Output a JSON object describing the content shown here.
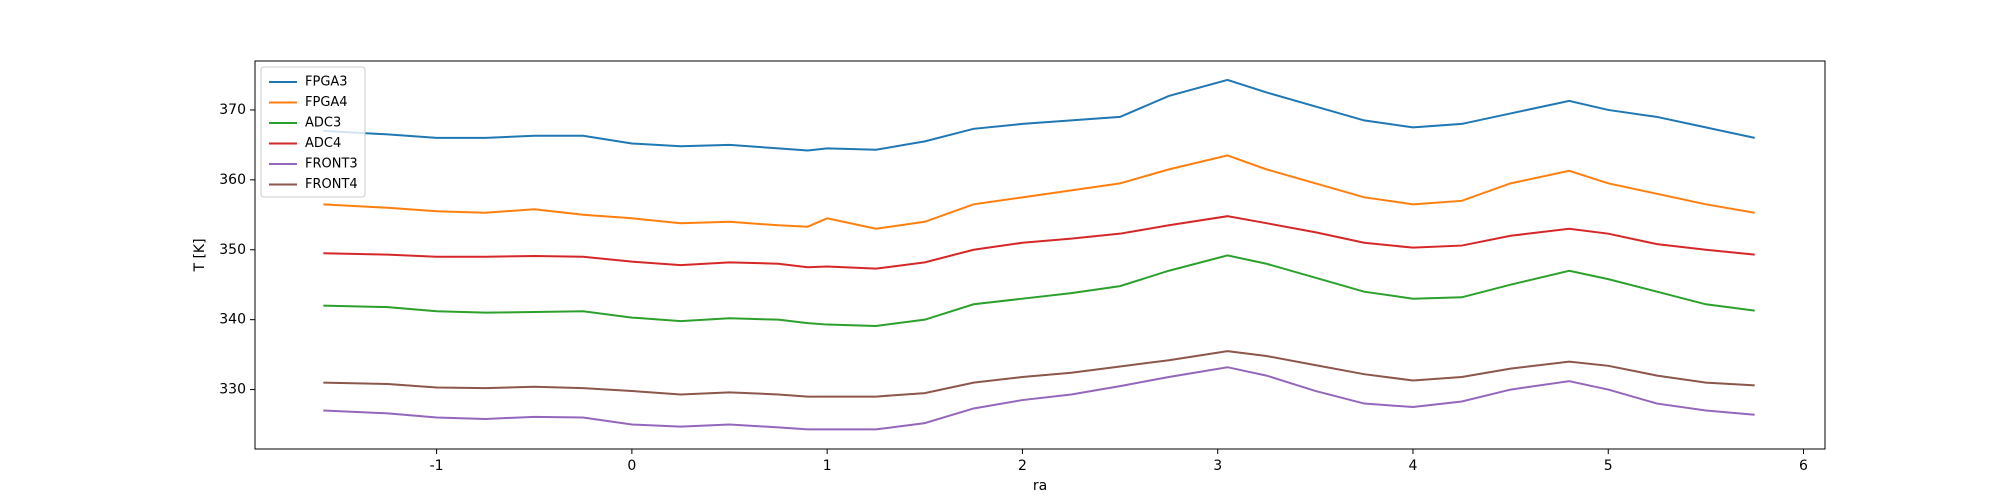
{
  "chart_data": {
    "type": "line",
    "xlabel": "ra",
    "ylabel": "T [K]",
    "x": [
      -1.58,
      -1.25,
      -1,
      -0.75,
      -0.5,
      -0.25,
      0,
      0.25,
      0.5,
      0.75,
      0.9,
      1,
      1.25,
      1.5,
      1.75,
      2,
      2.25,
      2.5,
      2.75,
      3.05,
      3.25,
      3.5,
      3.75,
      4,
      4.25,
      4.5,
      4.8,
      5,
      5.25,
      5.5,
      5.75
    ],
    "series": [
      {
        "name": "FPGA3",
        "color": "#1f77b4",
        "values": [
          367,
          366.5,
          366,
          366,
          366.3,
          366.3,
          365.2,
          364.8,
          365,
          364.5,
          364.2,
          364.5,
          364.3,
          365.5,
          367.3,
          368,
          368.5,
          369,
          372,
          374.3,
          372.5,
          370.5,
          368.5,
          367.5,
          368,
          369.5,
          371.3,
          370,
          369,
          367.5,
          366
        ]
      },
      {
        "name": "FPGA4",
        "color": "#ff7f0e",
        "values": [
          356.5,
          356,
          355.5,
          355.3,
          355.8,
          355,
          354.5,
          353.8,
          354,
          353.5,
          353.3,
          354.5,
          353,
          354,
          356.5,
          357.5,
          358.5,
          359.5,
          361.5,
          363.5,
          361.5,
          359.5,
          357.5,
          356.5,
          357,
          359.5,
          361.3,
          359.5,
          358,
          356.5,
          355.3
        ]
      },
      {
        "name": "ADC3",
        "color": "#2ca02c",
        "values": [
          342,
          341.8,
          341.2,
          341,
          341.1,
          341.2,
          340.3,
          339.8,
          340.2,
          340,
          339.5,
          339.3,
          339.1,
          340,
          342.2,
          343,
          343.8,
          344.8,
          347,
          349.2,
          348,
          346,
          344,
          343,
          343.2,
          345,
          347,
          345.8,
          344,
          342.2,
          341.3
        ]
      },
      {
        "name": "ADC4",
        "color": "#d62728",
        "values": [
          349.5,
          349.3,
          349,
          349,
          349.1,
          349,
          348.3,
          347.8,
          348.2,
          348,
          347.5,
          347.6,
          347.3,
          348.2,
          350,
          351,
          351.6,
          352.3,
          353.5,
          354.8,
          353.8,
          352.5,
          351,
          350.3,
          350.6,
          352,
          353,
          352.3,
          350.8,
          350,
          349.3
        ]
      },
      {
        "name": "FRONT3",
        "color": "#9467bd",
        "values": [
          327,
          326.6,
          326,
          325.8,
          326.1,
          326,
          325,
          324.7,
          325,
          324.6,
          324.3,
          324.3,
          324.3,
          325.2,
          327.3,
          328.5,
          329.3,
          330.5,
          331.8,
          333.2,
          332,
          329.8,
          328,
          327.5,
          328.3,
          330,
          331.2,
          330,
          328,
          327,
          326.4
        ]
      },
      {
        "name": "FRONT4",
        "color": "#8c564b",
        "values": [
          331,
          330.8,
          330.3,
          330.2,
          330.4,
          330.2,
          329.8,
          329.3,
          329.6,
          329.3,
          329,
          329,
          329,
          329.5,
          331,
          331.8,
          332.4,
          333.3,
          334.2,
          335.5,
          334.8,
          333.5,
          332.2,
          331.3,
          331.8,
          333,
          334,
          333.4,
          332,
          331,
          330.6
        ]
      }
    ],
    "xlim": [
      -1.93,
      6.11
    ],
    "xticks": [
      -1,
      0,
      1,
      2,
      3,
      4,
      5,
      6
    ],
    "ylim": [
      321.5,
      377
    ],
    "yticks": [
      330,
      340,
      350,
      360,
      370
    ],
    "legend": "upper left"
  }
}
